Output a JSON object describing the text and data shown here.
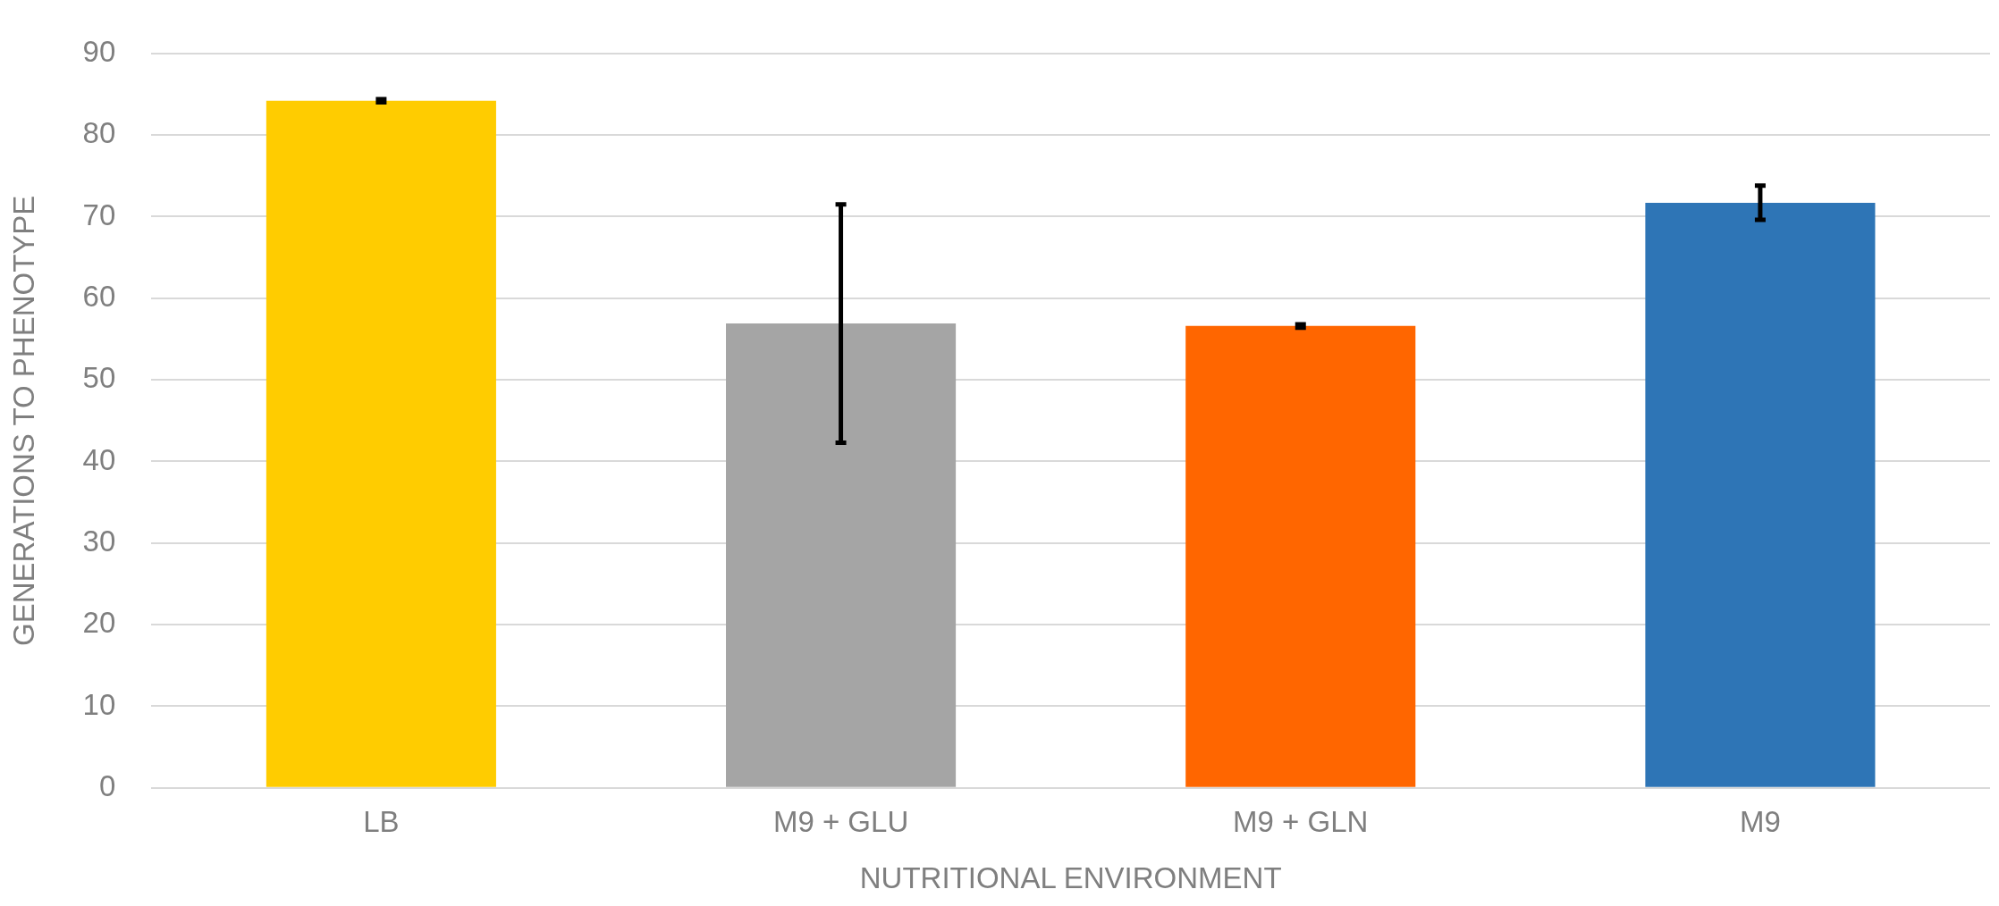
{
  "chart_data": {
    "type": "bar",
    "xlabel": "NUTRITIONAL ENVIRONMENT",
    "ylabel": "GENERATIONS TO PHENOTYPE",
    "categories": [
      "LB",
      "M9 + GLU",
      "M9 + GLN",
      "M9"
    ],
    "values": [
      84.2,
      56.9,
      56.6,
      71.7
    ],
    "colors": [
      "#ffcc00",
      "#a5a5a5",
      "#ff6600",
      "#2e75b6"
    ],
    "errors": [
      0.2,
      14.6,
      0.2,
      2.1
    ],
    "ylim": [
      0,
      90
    ],
    "yticks": [
      0,
      10,
      20,
      30,
      40,
      50,
      60,
      70,
      80,
      90
    ],
    "grid": "y",
    "legend": false
  }
}
